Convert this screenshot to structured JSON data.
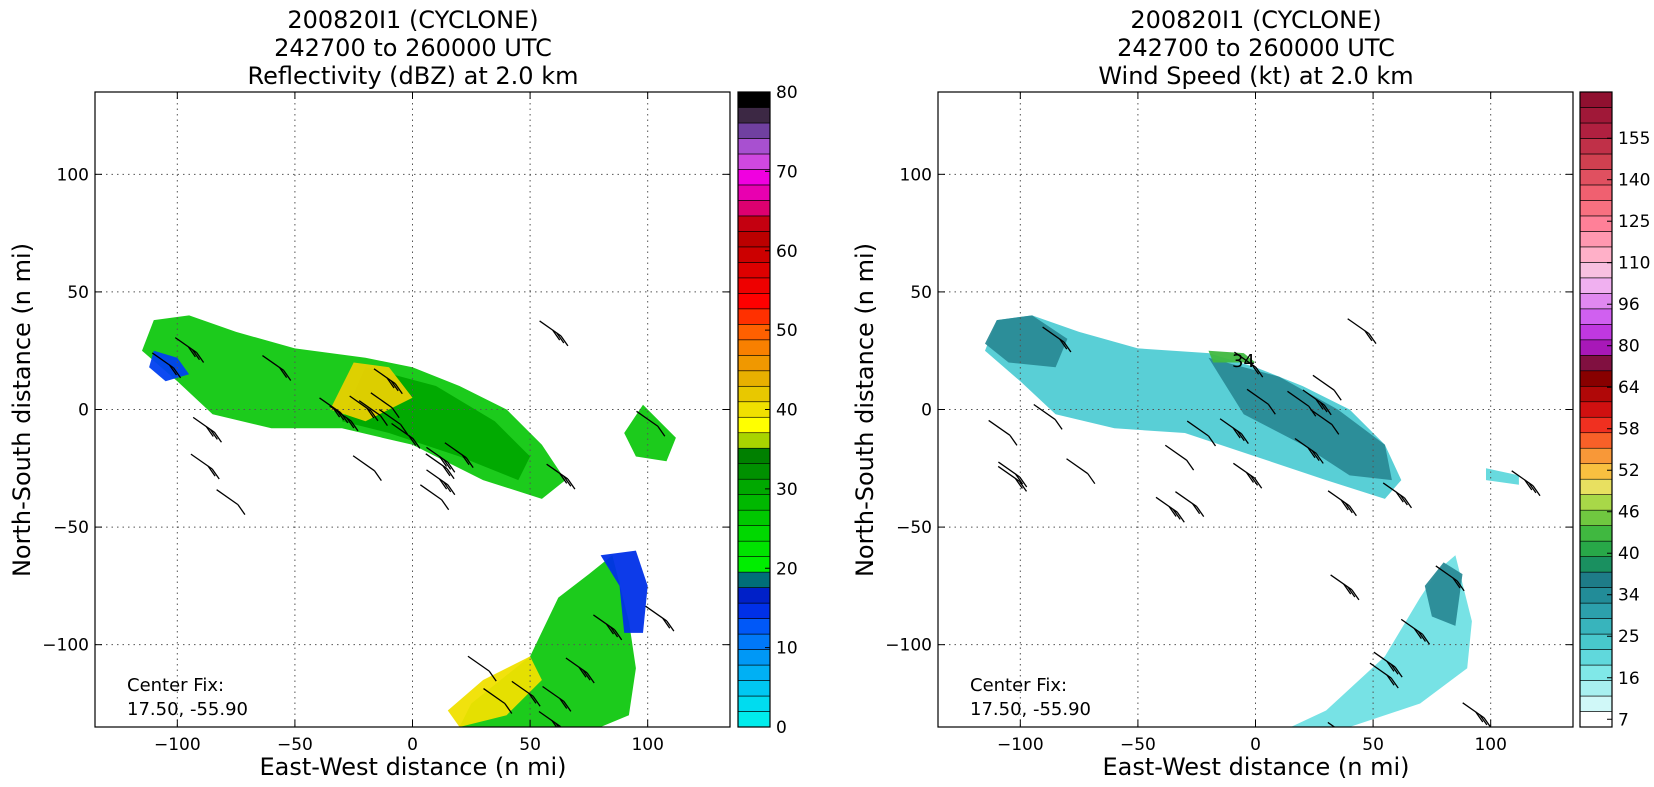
{
  "chart_data": [
    {
      "type": "heatmap",
      "title_lines": [
        "200820I1 (CYCLONE)",
        "242700 to 260000 UTC",
        "Reflectivity (dBZ) at 2.0 km"
      ],
      "xlabel": "East-West distance (n mi)",
      "ylabel": "North-South distance (n mi)",
      "xlim": [
        -135,
        135
      ],
      "ylim": [
        -135,
        135
      ],
      "xticks": [
        -100,
        -50,
        0,
        50,
        100
      ],
      "yticks": [
        -100,
        -50,
        0,
        50,
        100
      ],
      "xtick_labels": [
        "−100",
        "−50",
        "0",
        "50",
        "100"
      ],
      "ytick_labels": [
        "−100",
        "−50",
        "0",
        "50",
        "100"
      ],
      "grid": true,
      "annotation_lines": [
        "Center Fix:",
        "17.50, -55.90"
      ],
      "colorbar": {
        "min": 0,
        "max": 80,
        "tick_values": [
          0,
          10,
          20,
          30,
          40,
          50,
          60,
          70,
          80
        ],
        "tick_labels": [
          "0",
          "10",
          "20",
          "30",
          "40",
          "50",
          "60",
          "70",
          "80"
        ],
        "colors": [
          "#00ecec",
          "#00dcef",
          "#00c8f2",
          "#00b0f4",
          "#0098f6",
          "#0078f8",
          "#0058f8",
          "#0030e8",
          "#0020c8",
          "#006e78",
          "#00ee00",
          "#00e400",
          "#00d800",
          "#00c800",
          "#00b800",
          "#00a800",
          "#009000",
          "#008000",
          "#a8d400",
          "#ffff00",
          "#f0e000",
          "#e8c800",
          "#e8b000",
          "#f09800",
          "#f88000",
          "#ff6000",
          "#ff3000",
          "#ff0000",
          "#ee0000",
          "#dd0000",
          "#cc0000",
          "#bb0000",
          "#c40010",
          "#dd0070",
          "#e800b0",
          "#f000e0",
          "#d048e0",
          "#a850d0",
          "#7040a0",
          "#3c2844",
          "#000000"
        ]
      },
      "regions": [
        {
          "name": "northern band",
          "points": [
            [
              -110,
              38
            ],
            [
              -95,
              40
            ],
            [
              -75,
              33
            ],
            [
              -50,
              26
            ],
            [
              -20,
              22
            ],
            [
              0,
              18
            ],
            [
              20,
              10
            ],
            [
              40,
              0
            ],
            [
              55,
              -15
            ],
            [
              65,
              -30
            ],
            [
              55,
              -38
            ],
            [
              30,
              -30
            ],
            [
              0,
              -15
            ],
            [
              -30,
              -8
            ],
            [
              -60,
              -8
            ],
            [
              -85,
              -2
            ],
            [
              -100,
              12
            ],
            [
              -115,
              25
            ]
          ],
          "color": "#10c810"
        },
        {
          "name": "core",
          "points": [
            [
              -20,
              18
            ],
            [
              10,
              10
            ],
            [
              35,
              -5
            ],
            [
              50,
              -20
            ],
            [
              45,
              -30
            ],
            [
              20,
              -20
            ],
            [
              -10,
              -10
            ],
            [
              -30,
              -5
            ]
          ],
          "color": "#00a800"
        },
        {
          "name": "high cells",
          "points": [
            [
              -25,
              20
            ],
            [
              -10,
              18
            ],
            [
              0,
              5
            ],
            [
              -20,
              -5
            ],
            [
              -35,
              0
            ]
          ],
          "color": "#e8d000"
        },
        {
          "name": "western blue",
          "points": [
            [
              -110,
              25
            ],
            [
              -100,
              22
            ],
            [
              -95,
              15
            ],
            [
              -105,
              12
            ],
            [
              -112,
              18
            ]
          ],
          "color": "#0040f0"
        },
        {
          "name": "east cells",
          "points": [
            [
              98,
              2
            ],
            [
              112,
              -12
            ],
            [
              108,
              -22
            ],
            [
              95,
              -20
            ],
            [
              90,
              -10
            ]
          ],
          "color": "#10c810"
        },
        {
          "name": "southern cell",
          "points": [
            [
              85,
              -62
            ],
            [
              92,
              -90
            ],
            [
              95,
              -110
            ],
            [
              92,
              -130
            ],
            [
              80,
              -135
            ],
            [
              20,
              -135
            ],
            [
              25,
              -125
            ],
            [
              50,
              -105
            ],
            [
              62,
              -80
            ],
            [
              75,
              -70
            ]
          ],
          "color": "#10c810"
        },
        {
          "name": "southern yellow",
          "points": [
            [
              20,
              -135
            ],
            [
              40,
              -130
            ],
            [
              55,
              -115
            ],
            [
              50,
              -105
            ],
            [
              30,
              -115
            ],
            [
              15,
              -128
            ]
          ],
          "color": "#f0e000"
        },
        {
          "name": "southern blue edge",
          "points": [
            [
              80,
              -62
            ],
            [
              95,
              -60
            ],
            [
              100,
              -75
            ],
            [
              98,
              -95
            ],
            [
              90,
              -95
            ],
            [
              88,
              -75
            ]
          ],
          "color": "#0030e8"
        }
      ],
      "wind_barbs_count": 40
    },
    {
      "type": "heatmap",
      "title_lines": [
        "200820I1 (CYCLONE)",
        "242700 to 260000 UTC",
        "Wind Speed (kt) at 2.0 km"
      ],
      "xlabel": "East-West distance (n mi)",
      "ylabel": "North-South distance (n mi)",
      "xlim": [
        -135,
        135
      ],
      "ylim": [
        -135,
        135
      ],
      "xticks": [
        -100,
        -50,
        0,
        50,
        100
      ],
      "yticks": [
        -100,
        -50,
        0,
        50,
        100
      ],
      "xtick_labels": [
        "−100",
        "−50",
        "0",
        "50",
        "100"
      ],
      "ytick_labels": [
        "−100",
        "−50",
        "0",
        "50",
        "100"
      ],
      "grid": true,
      "annotation_lines": [
        "Center Fix:",
        "17.50, -55.90"
      ],
      "label_in_plot": {
        "text": "34",
        "x": -10,
        "y": 18
      },
      "colorbar": {
        "tick_values": [
          7,
          16,
          25,
          34,
          40,
          46,
          52,
          58,
          64,
          80,
          96,
          110,
          125,
          140,
          155
        ],
        "tick_labels": [
          "7",
          "16",
          "25",
          "34",
          "40",
          "46",
          "52",
          "58",
          "64",
          "80",
          "96",
          "110",
          "125",
          "140",
          "155"
        ],
        "colors": [
          "#ffffff",
          "#d0f8f8",
          "#a8f0f0",
          "#80e8e8",
          "#60d8dc",
          "#48c8cc",
          "#38b4bc",
          "#2ca0ac",
          "#228c98",
          "#1e7c88",
          "#1a9060",
          "#28a848",
          "#40b840",
          "#70c840",
          "#a8d848",
          "#e8e060",
          "#f8c040",
          "#f89838",
          "#f86028",
          "#f03020",
          "#d01010",
          "#b00808",
          "#880000",
          "#801040",
          "#a818b8",
          "#c038e0",
          "#d060f0",
          "#e088f0",
          "#f0b0f0",
          "#f8c0e0",
          "#ffb0c8",
          "#ff98b0",
          "#ff8098",
          "#f87080",
          "#f06070",
          "#e05060",
          "#d04050",
          "#c03048",
          "#b02040",
          "#a01838",
          "#901030"
        ]
      },
      "regions": [
        {
          "name": "northern band",
          "points": [
            [
              -110,
              38
            ],
            [
              -95,
              40
            ],
            [
              -75,
              33
            ],
            [
              -50,
              26
            ],
            [
              -20,
              24
            ],
            [
              0,
              18
            ],
            [
              20,
              10
            ],
            [
              40,
              0
            ],
            [
              55,
              -15
            ],
            [
              62,
              -30
            ],
            [
              55,
              -38
            ],
            [
              30,
              -30
            ],
            [
              0,
              -20
            ],
            [
              -30,
              -10
            ],
            [
              -60,
              -8
            ],
            [
              -85,
              -2
            ],
            [
              -100,
              12
            ],
            [
              -115,
              25
            ]
          ],
          "color": "#50ccd4"
        },
        {
          "name": "darker core",
          "points": [
            [
              -20,
              22
            ],
            [
              10,
              14
            ],
            [
              35,
              0
            ],
            [
              55,
              -15
            ],
            [
              58,
              -30
            ],
            [
              40,
              -28
            ],
            [
              20,
              -15
            ],
            [
              -5,
              -2
            ]
          ],
          "color": "#2a8a96"
        },
        {
          "name": "western teal",
          "points": [
            [
              -110,
              38
            ],
            [
              -95,
              40
            ],
            [
              -80,
              30
            ],
            [
              -85,
              18
            ],
            [
              -105,
              20
            ],
            [
              -115,
              28
            ]
          ],
          "color": "#2a8a96"
        },
        {
          "name": "east feature",
          "points": [
            [
              98,
              -25
            ],
            [
              112,
              -28
            ],
            [
              112,
              -32
            ],
            [
              98,
              -30
            ]
          ],
          "color": "#60d8dc"
        },
        {
          "name": "southern cell",
          "points": [
            [
              85,
              -62
            ],
            [
              92,
              -90
            ],
            [
              90,
              -110
            ],
            [
              70,
              -125
            ],
            [
              40,
              -135
            ],
            [
              15,
              -135
            ],
            [
              30,
              -128
            ],
            [
              55,
              -105
            ],
            [
              70,
              -80
            ],
            [
              78,
              -68
            ]
          ],
          "color": "#70e0e4"
        },
        {
          "name": "southern dark",
          "points": [
            [
              80,
              -65
            ],
            [
              88,
              -70
            ],
            [
              85,
              -92
            ],
            [
              75,
              -88
            ],
            [
              72,
              -75
            ]
          ],
          "color": "#2a8a96"
        },
        {
          "name": "green cells",
          "points": [
            [
              -20,
              25
            ],
            [
              -5,
              24
            ],
            [
              0,
              20
            ],
            [
              -18,
              20
            ]
          ],
          "color": "#40b840"
        }
      ],
      "wind_barbs_count": 40
    }
  ]
}
